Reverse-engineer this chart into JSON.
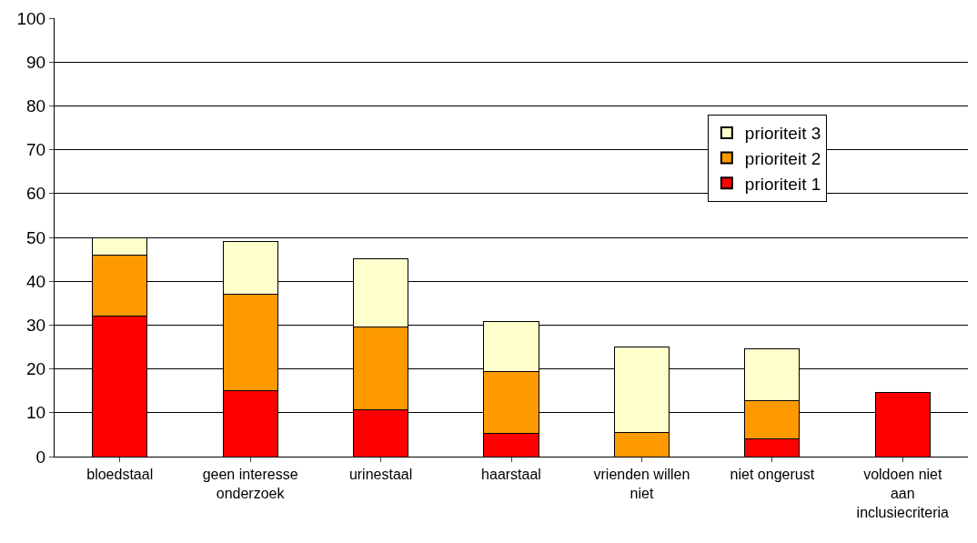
{
  "chart_data": {
    "type": "bar",
    "stacked": true,
    "categories": [
      "bloedstaal",
      "geen interesse onderzoek",
      "urinestaal",
      "haarstaal",
      "vrienden willen niet",
      "niet ongerust",
      "voldoen niet aan inclusiecriteria"
    ],
    "series": [
      {
        "name": "prioriteit 1",
        "color": "#ff0000",
        "values": [
          32,
          15,
          10.6,
          5.2,
          0,
          4.1,
          14.7
        ]
      },
      {
        "name": "prioriteit 2",
        "color": "#ff9900",
        "values": [
          14,
          22,
          18.9,
          14.1,
          5.6,
          8.6,
          0
        ]
      },
      {
        "name": "prioriteit 3",
        "color": "#ffffcc",
        "values": [
          4,
          12,
          15.7,
          11.6,
          19.5,
          11.8,
          0
        ]
      }
    ],
    "ylim": [
      0,
      100
    ],
    "yticks": [
      0,
      10,
      20,
      30,
      40,
      50,
      60,
      70,
      80,
      90,
      100
    ],
    "grid": "y",
    "legend": "top right"
  }
}
